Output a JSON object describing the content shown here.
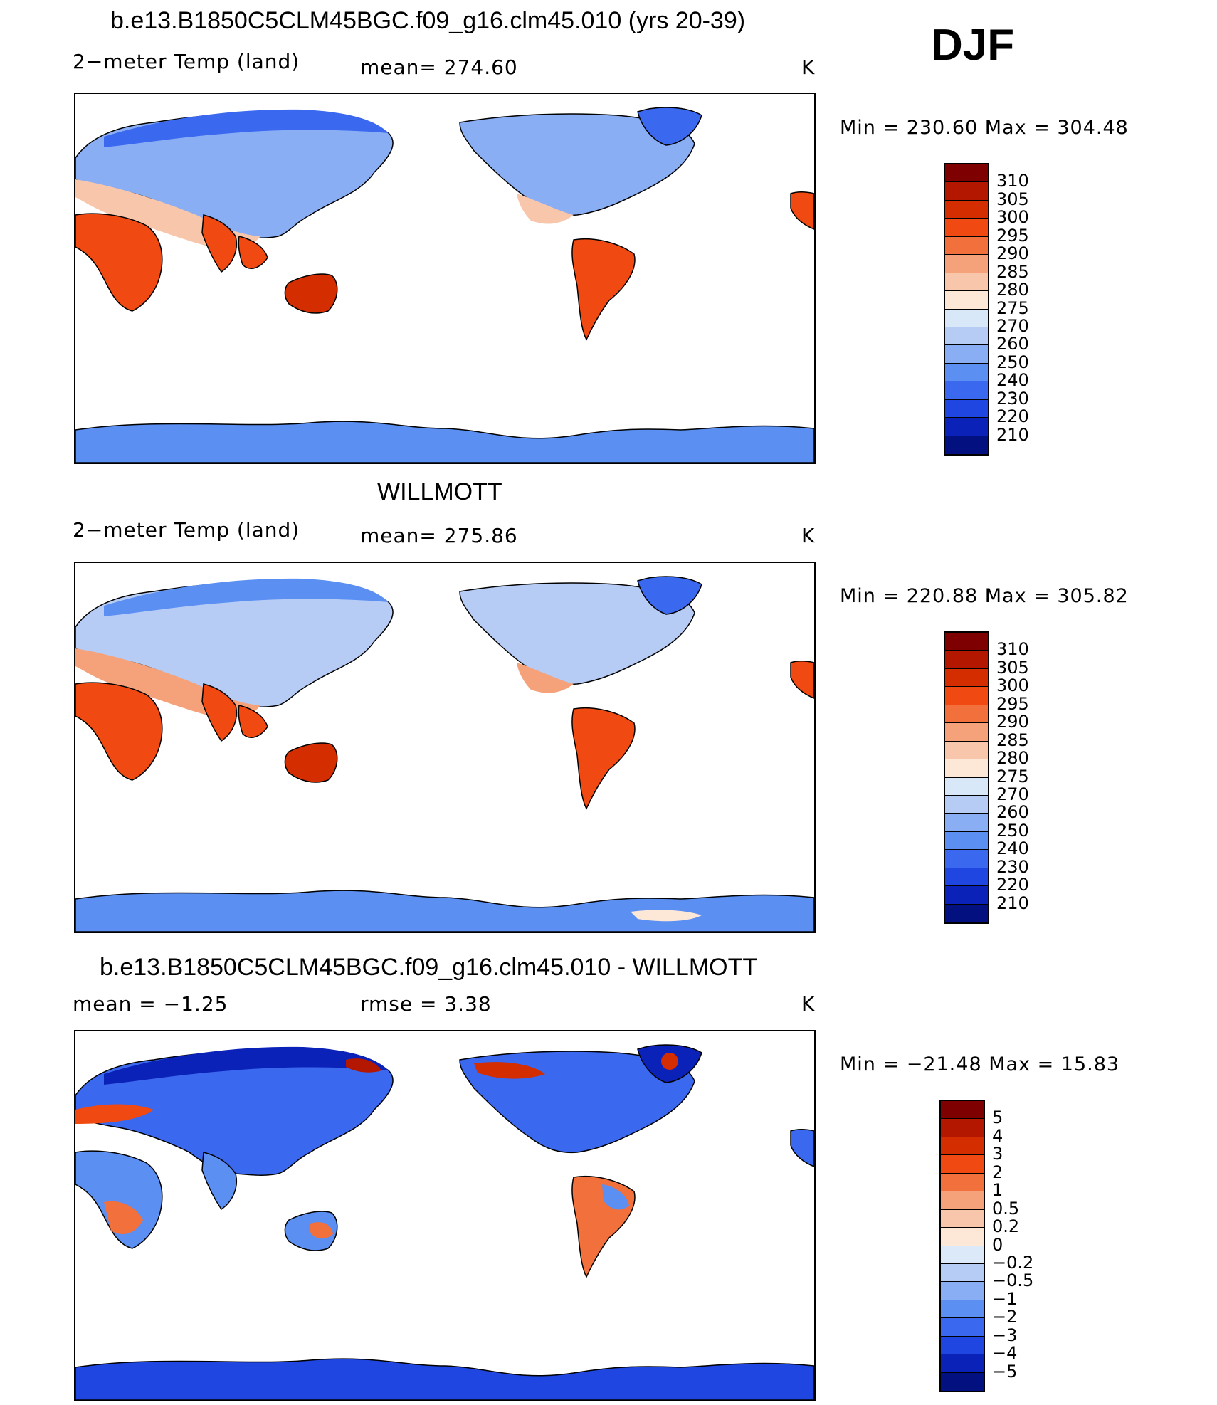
{
  "season": "DJF",
  "panels": [
    {
      "title": "b.e13.B1850C5CLM45BGC.f09_g16.clm45.010 (yrs 20-39)",
      "left_label": "2−meter Temp (land)",
      "center_label": "mean= 274.60",
      "units": "K",
      "minmax": "Min = 230.60 Max = 304.48",
      "colorbar_labels": [
        "310",
        "305",
        "300",
        "295",
        "290",
        "285",
        "280",
        "275",
        "270",
        "260",
        "250",
        "240",
        "230",
        "220",
        "210"
      ]
    },
    {
      "title": "WILLMOTT",
      "left_label": "2−meter Temp (land)",
      "center_label": "mean= 275.86",
      "units": "K",
      "minmax": "Min = 220.88 Max = 305.82",
      "colorbar_labels": [
        "310",
        "305",
        "300",
        "295",
        "290",
        "285",
        "280",
        "275",
        "270",
        "260",
        "250",
        "240",
        "230",
        "220",
        "210"
      ]
    },
    {
      "title": "b.e13.B1850C5CLM45BGC.f09_g16.clm45.010 - WILLMOTT",
      "left_label": "mean =   −1.25",
      "center_label": "rmse =    3.38",
      "units": "K",
      "minmax": "Min = −21.48 Max =   15.83",
      "colorbar_labels": [
        "5",
        "4",
        "3",
        "2",
        "1",
        "0.5",
        "0.2",
        "0",
        "−0.2",
        "−0.5",
        "−1",
        "−2",
        "−3",
        "−4",
        "−5"
      ]
    }
  ],
  "colors": {
    "abs_scale": [
      "#7f0000",
      "#b31700",
      "#d42d00",
      "#f04a12",
      "#f2703c",
      "#f5a17a",
      "#f8c6aa",
      "#fde8d8",
      "#d9e8f8",
      "#b6ccf5",
      "#8aaef4",
      "#5b8ff2",
      "#3a68ef",
      "#1f46e0",
      "#0b22b8",
      "#03107f"
    ],
    "diff_scale": [
      "#7f0000",
      "#b31700",
      "#d42d00",
      "#f04a12",
      "#f2703c",
      "#f5a17a",
      "#f8c6aa",
      "#fde8d8",
      "#dbe9f8",
      "#b6ccf5",
      "#8aaef4",
      "#5b8ff2",
      "#3a68ef",
      "#1f46e0",
      "#0b22b8",
      "#03107f"
    ]
  }
}
